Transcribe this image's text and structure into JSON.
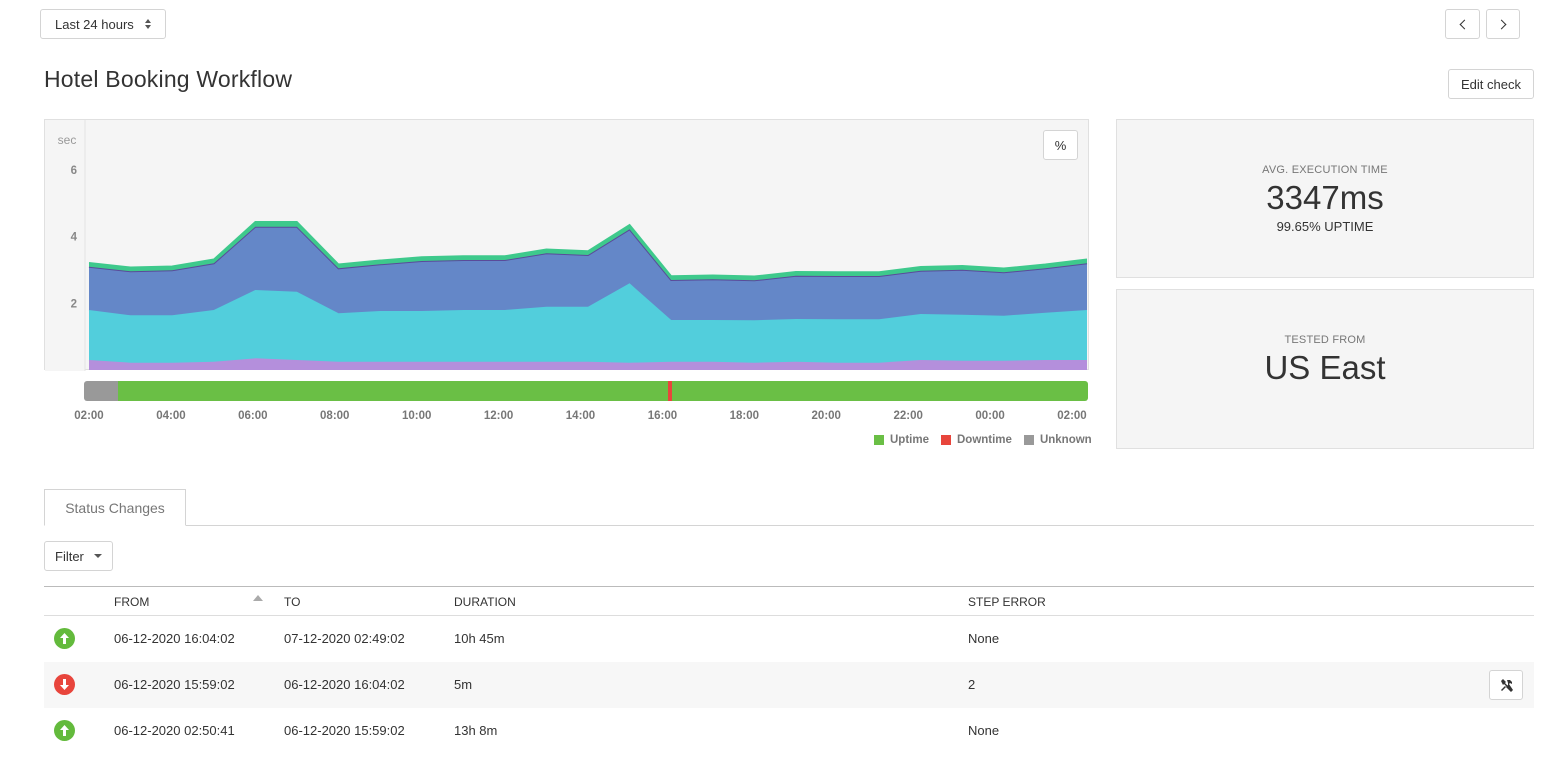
{
  "toolbar": {
    "range_label": "Last 24 hours",
    "prev_icon": "chevron-left-icon",
    "next_icon": "chevron-right-icon",
    "edit_label": "Edit check"
  },
  "page_title": "Hotel Booking Workflow",
  "chart_data": {
    "type": "area",
    "ylabel": "sec",
    "yticks": [
      2,
      4,
      6
    ],
    "ylim": [
      0,
      7.5
    ],
    "x": [
      "02:00",
      "03:00",
      "04:00",
      "05:00",
      "06:00",
      "07:00",
      "08:00",
      "09:00",
      "10:00",
      "11:00",
      "12:00",
      "13:00",
      "14:00",
      "15:00",
      "16:00",
      "17:00",
      "18:00",
      "19:00",
      "20:00",
      "21:00",
      "22:00",
      "23:00",
      "00:00",
      "01:00",
      "02:00"
    ],
    "xtick_labels": [
      "02:00",
      "04:00",
      "06:00",
      "08:00",
      "10:00",
      "12:00",
      "14:00",
      "16:00",
      "18:00",
      "20:00",
      "22:00",
      "00:00",
      "02:00"
    ],
    "toggle_label": "%",
    "series": [
      {
        "color": "#b48fdc",
        "values": [
          0.3,
          0.22,
          0.22,
          0.25,
          0.35,
          0.3,
          0.25,
          0.25,
          0.25,
          0.25,
          0.25,
          0.25,
          0.25,
          0.22,
          0.25,
          0.25,
          0.22,
          0.25,
          0.22,
          0.22,
          0.3,
          0.28,
          0.28,
          0.3,
          0.3
        ]
      },
      {
        "color": "#52cedc",
        "values": [
          1.5,
          1.42,
          1.42,
          1.55,
          2.05,
          2.05,
          1.45,
          1.52,
          1.52,
          1.55,
          1.55,
          1.65,
          1.65,
          2.38,
          1.25,
          1.25,
          1.27,
          1.28,
          1.3,
          1.3,
          1.38,
          1.38,
          1.35,
          1.42,
          1.5
        ]
      },
      {
        "color": "#6487c8",
        "values": [
          1.3,
          1.32,
          1.35,
          1.4,
          1.9,
          1.95,
          1.35,
          1.4,
          1.5,
          1.5,
          1.5,
          1.6,
          1.55,
          1.62,
          1.2,
          1.22,
          1.2,
          1.3,
          1.3,
          1.3,
          1.3,
          1.35,
          1.3,
          1.33,
          1.4
        ]
      },
      {
        "color": "#3ec98c",
        "values": [
          0.12,
          0.12,
          0.12,
          0.12,
          0.15,
          0.15,
          0.12,
          0.12,
          0.12,
          0.12,
          0.12,
          0.12,
          0.12,
          0.14,
          0.12,
          0.12,
          0.12,
          0.12,
          0.12,
          0.12,
          0.12,
          0.12,
          0.12,
          0.12,
          0.12
        ]
      }
    ],
    "status_timeline": [
      {
        "status": "unknown",
        "from": 0,
        "to": 0.034,
        "color": "#999999"
      },
      {
        "status": "uptime",
        "from": 0.034,
        "to": 0.582,
        "color": "#6abf45"
      },
      {
        "status": "downtime",
        "from": 0.582,
        "to": 0.586,
        "color": "#e8453c"
      },
      {
        "status": "uptime",
        "from": 0.586,
        "to": 1,
        "color": "#6abf45"
      }
    ],
    "legend": [
      {
        "label": "Uptime",
        "color": "#6abf45"
      },
      {
        "label": "Downtime",
        "color": "#e8453c"
      },
      {
        "label": "Unknown",
        "color": "#999999"
      }
    ]
  },
  "stats": {
    "exec_label": "AVG. EXECUTION TIME",
    "exec_value": "3347ms",
    "uptime_text": "99.65% UPTIME",
    "region_label": "TESTED FROM",
    "region_value": "US East"
  },
  "tabs": [
    {
      "label": "Status Changes"
    }
  ],
  "filter_label": "Filter",
  "table": {
    "headers": {
      "from": "FROM",
      "to": "TO",
      "duration": "DURATION",
      "step_error": "STEP ERROR"
    },
    "rows": [
      {
        "status": "up",
        "from": "06-12-2020 16:04:02",
        "to": "07-12-2020 02:49:02",
        "duration": "10h 45m",
        "step_error": "None"
      },
      {
        "status": "down",
        "from": "06-12-2020 15:59:02",
        "to": "06-12-2020 16:04:02",
        "duration": "5m",
        "step_error": "2",
        "action_icon": "tools-icon"
      },
      {
        "status": "up",
        "from": "06-12-2020 02:50:41",
        "to": "06-12-2020 15:59:02",
        "duration": "13h 8m",
        "step_error": "None"
      }
    ]
  }
}
